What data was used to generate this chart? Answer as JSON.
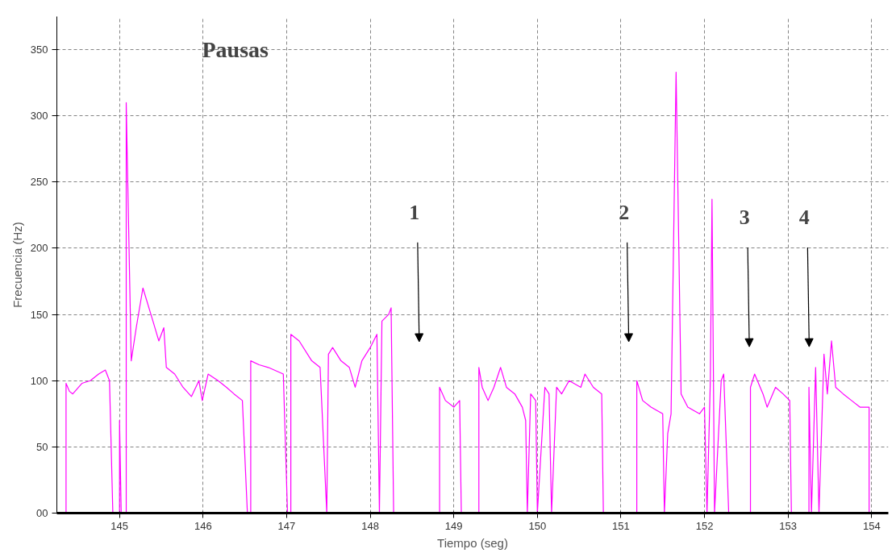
{
  "chart_data": {
    "type": "line",
    "xlabel": "Tiempo (seg)",
    "ylabel": "Frecuencia (Hz)",
    "xlim": [
      144.25,
      154.2
    ],
    "ylim": [
      0,
      375
    ],
    "xticks": [
      145,
      146,
      147,
      148,
      149,
      150,
      151,
      152,
      153,
      154
    ],
    "yticks": [
      {
        "value": 0,
        "label": "00"
      },
      50,
      100,
      150,
      200,
      250,
      300,
      350
    ],
    "grid": true,
    "line_style": "solid",
    "annotations": [
      "Pausas",
      "1",
      "2",
      "3",
      "4"
    ],
    "series": [
      {
        "color": "#ff00ff",
        "x": [
          144.36,
          144.36,
          144.4,
          144.44,
          144.55,
          144.65,
          144.75,
          144.83,
          144.88,
          144.92,
          145.0,
          145.0,
          145.02,
          145.08,
          145.08,
          145.14,
          145.2,
          145.28,
          145.4,
          145.47,
          145.53,
          145.56,
          145.66,
          145.76,
          145.86,
          145.95,
          145.99,
          146.06,
          146.18,
          146.28,
          146.37,
          146.47,
          146.53,
          146.57,
          146.57,
          146.67,
          146.78,
          146.96,
          147.01,
          147.05,
          147.05,
          147.15,
          147.3,
          147.4,
          147.48,
          147.5,
          147.55,
          147.65,
          147.75,
          147.82,
          147.9,
          148.0,
          148.08,
          148.11,
          148.14,
          148.22,
          148.25,
          148.28,
          148.83,
          148.83,
          148.9,
          149.0,
          149.07,
          149.09,
          149.3,
          149.3,
          149.34,
          149.41,
          149.48,
          149.56,
          149.63,
          149.73,
          149.82,
          149.86,
          149.88,
          149.92,
          149.98,
          150.0,
          150.09,
          150.14,
          150.17,
          150.23,
          150.29,
          150.38,
          150.52,
          150.57,
          150.67,
          150.77,
          150.79,
          151.19,
          151.19,
          151.26,
          151.36,
          151.5,
          151.52,
          151.56,
          151.6,
          151.66,
          151.72,
          151.8,
          151.94,
          152.0,
          152.03,
          152.07,
          152.09,
          152.12,
          152.2,
          152.23,
          152.29,
          152.55,
          152.55,
          152.6,
          152.7,
          152.75,
          152.85,
          152.94,
          153.02,
          153.04,
          153.25,
          153.25,
          153.28,
          153.33,
          153.37,
          153.43,
          153.47,
          153.52,
          153.57,
          153.66,
          153.76,
          153.86,
          153.97,
          153.97
        ],
        "values": [
          0,
          98,
          92,
          90,
          98,
          100,
          105,
          108,
          100,
          0,
          0,
          70,
          0,
          0,
          310,
          115,
          140,
          170,
          145,
          130,
          140,
          110,
          105,
          95,
          88,
          100,
          85,
          105,
          100,
          95,
          90,
          85,
          0,
          0,
          115,
          112,
          110,
          105,
          0,
          0,
          135,
          130,
          115,
          110,
          0,
          120,
          125,
          115,
          110,
          95,
          115,
          125,
          135,
          0,
          145,
          150,
          155,
          0,
          0,
          95,
          85,
          80,
          85,
          0,
          0,
          110,
          95,
          85,
          95,
          110,
          95,
          90,
          80,
          70,
          0,
          90,
          85,
          0,
          95,
          90,
          0,
          95,
          90,
          100,
          95,
          105,
          95,
          90,
          0,
          0,
          100,
          85,
          80,
          75,
          0,
          60,
          75,
          333,
          90,
          80,
          75,
          80,
          0,
          100,
          237,
          0,
          100,
          105,
          0,
          0,
          95,
          105,
          90,
          80,
          95,
          90,
          85,
          0,
          0,
          95,
          0,
          110,
          0,
          120,
          90,
          130,
          95,
          90,
          85,
          80,
          80,
          0
        ]
      }
    ]
  }
}
